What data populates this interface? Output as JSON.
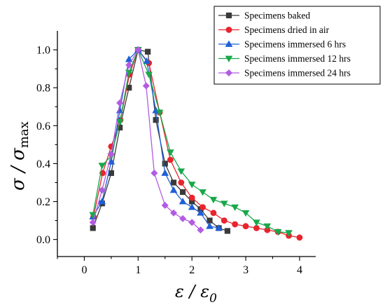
{
  "chart_data": {
    "type": "line",
    "xlabel": "ε / ε",
    "xlabel_sub": "0",
    "ylabel": "σ / σ",
    "ylabel_sub": "max",
    "xlim": [
      -0.5,
      4.3
    ],
    "ylim": [
      -0.09,
      1.1
    ],
    "xticks": [
      0,
      1,
      2,
      3,
      4
    ],
    "xtick_labels": [
      "0",
      "1",
      "2",
      "3",
      "4"
    ],
    "yticks": [
      0.0,
      0.2,
      0.4,
      0.6,
      0.8,
      1.0
    ],
    "ytick_labels": [
      "0.0",
      "0.2",
      "0.4",
      "0.6",
      "0.8",
      "1.0"
    ],
    "grid": false,
    "legend_position": "top-right",
    "series": [
      {
        "name": "Specimens baked",
        "color": "#3a3a3a",
        "marker": "square",
        "x": [
          0.16,
          0.33,
          0.5,
          0.66,
          0.83,
          1.0,
          1.18,
          1.33,
          1.5,
          1.66,
          1.83,
          2.0,
          2.16,
          2.33,
          2.5,
          2.66
        ],
        "y": [
          0.06,
          0.19,
          0.35,
          0.59,
          0.8,
          1.0,
          0.99,
          0.63,
          0.4,
          0.3,
          0.25,
          0.2,
          0.16,
          0.1,
          0.06,
          0.045
        ]
      },
      {
        "name": "Specimens dried in air",
        "color": "#e8242d",
        "marker": "circle",
        "x": [
          0.17,
          0.34,
          0.5,
          0.67,
          0.84,
          1.0,
          1.2,
          1.4,
          1.6,
          1.8,
          2.0,
          2.2,
          2.4,
          2.6,
          2.8,
          3.0,
          3.2,
          3.4,
          3.6,
          3.8,
          4.0
        ],
        "y": [
          0.12,
          0.35,
          0.49,
          0.63,
          0.87,
          1.0,
          0.93,
          0.67,
          0.42,
          0.3,
          0.22,
          0.17,
          0.14,
          0.1,
          0.08,
          0.07,
          0.06,
          0.05,
          0.04,
          0.02,
          0.01
        ]
      },
      {
        "name": "Specimens immersed 6 hrs",
        "color": "#1f5fd6",
        "marker": "triangle-up",
        "x": [
          0.16,
          0.33,
          0.5,
          0.66,
          0.83,
          1.0,
          1.16,
          1.33,
          1.5,
          1.66,
          1.83,
          2.0,
          2.16,
          2.33,
          2.5
        ],
        "y": [
          0.12,
          0.2,
          0.41,
          0.68,
          0.95,
          1.0,
          0.94,
          0.68,
          0.35,
          0.26,
          0.2,
          0.17,
          0.14,
          0.07,
          0.06
        ]
      },
      {
        "name": "Specimens immersed 12 hrs",
        "color": "#18a84a",
        "marker": "triangle-down",
        "x": [
          0.16,
          0.33,
          0.5,
          0.66,
          0.83,
          1.0,
          1.2,
          1.4,
          1.6,
          1.8,
          2.0,
          2.2,
          2.4,
          2.6,
          2.8,
          3.0,
          3.2,
          3.4,
          3.6,
          3.8
        ],
        "y": [
          0.13,
          0.39,
          0.44,
          0.62,
          0.88,
          1.0,
          0.87,
          0.67,
          0.46,
          0.36,
          0.29,
          0.25,
          0.21,
          0.19,
          0.17,
          0.14,
          0.09,
          0.07,
          0.04,
          0.035
        ]
      },
      {
        "name": "Specimens immersed 24 hrs",
        "color": "#b25be2",
        "marker": "diamond",
        "x": [
          0.16,
          0.33,
          0.5,
          0.66,
          0.83,
          1.0,
          1.15,
          1.3,
          1.5,
          1.66,
          1.83,
          2.0,
          2.16
        ],
        "y": [
          0.09,
          0.26,
          0.45,
          0.72,
          0.92,
          1.0,
          0.81,
          0.35,
          0.18,
          0.14,
          0.11,
          0.09,
          0.05
        ]
      }
    ]
  }
}
